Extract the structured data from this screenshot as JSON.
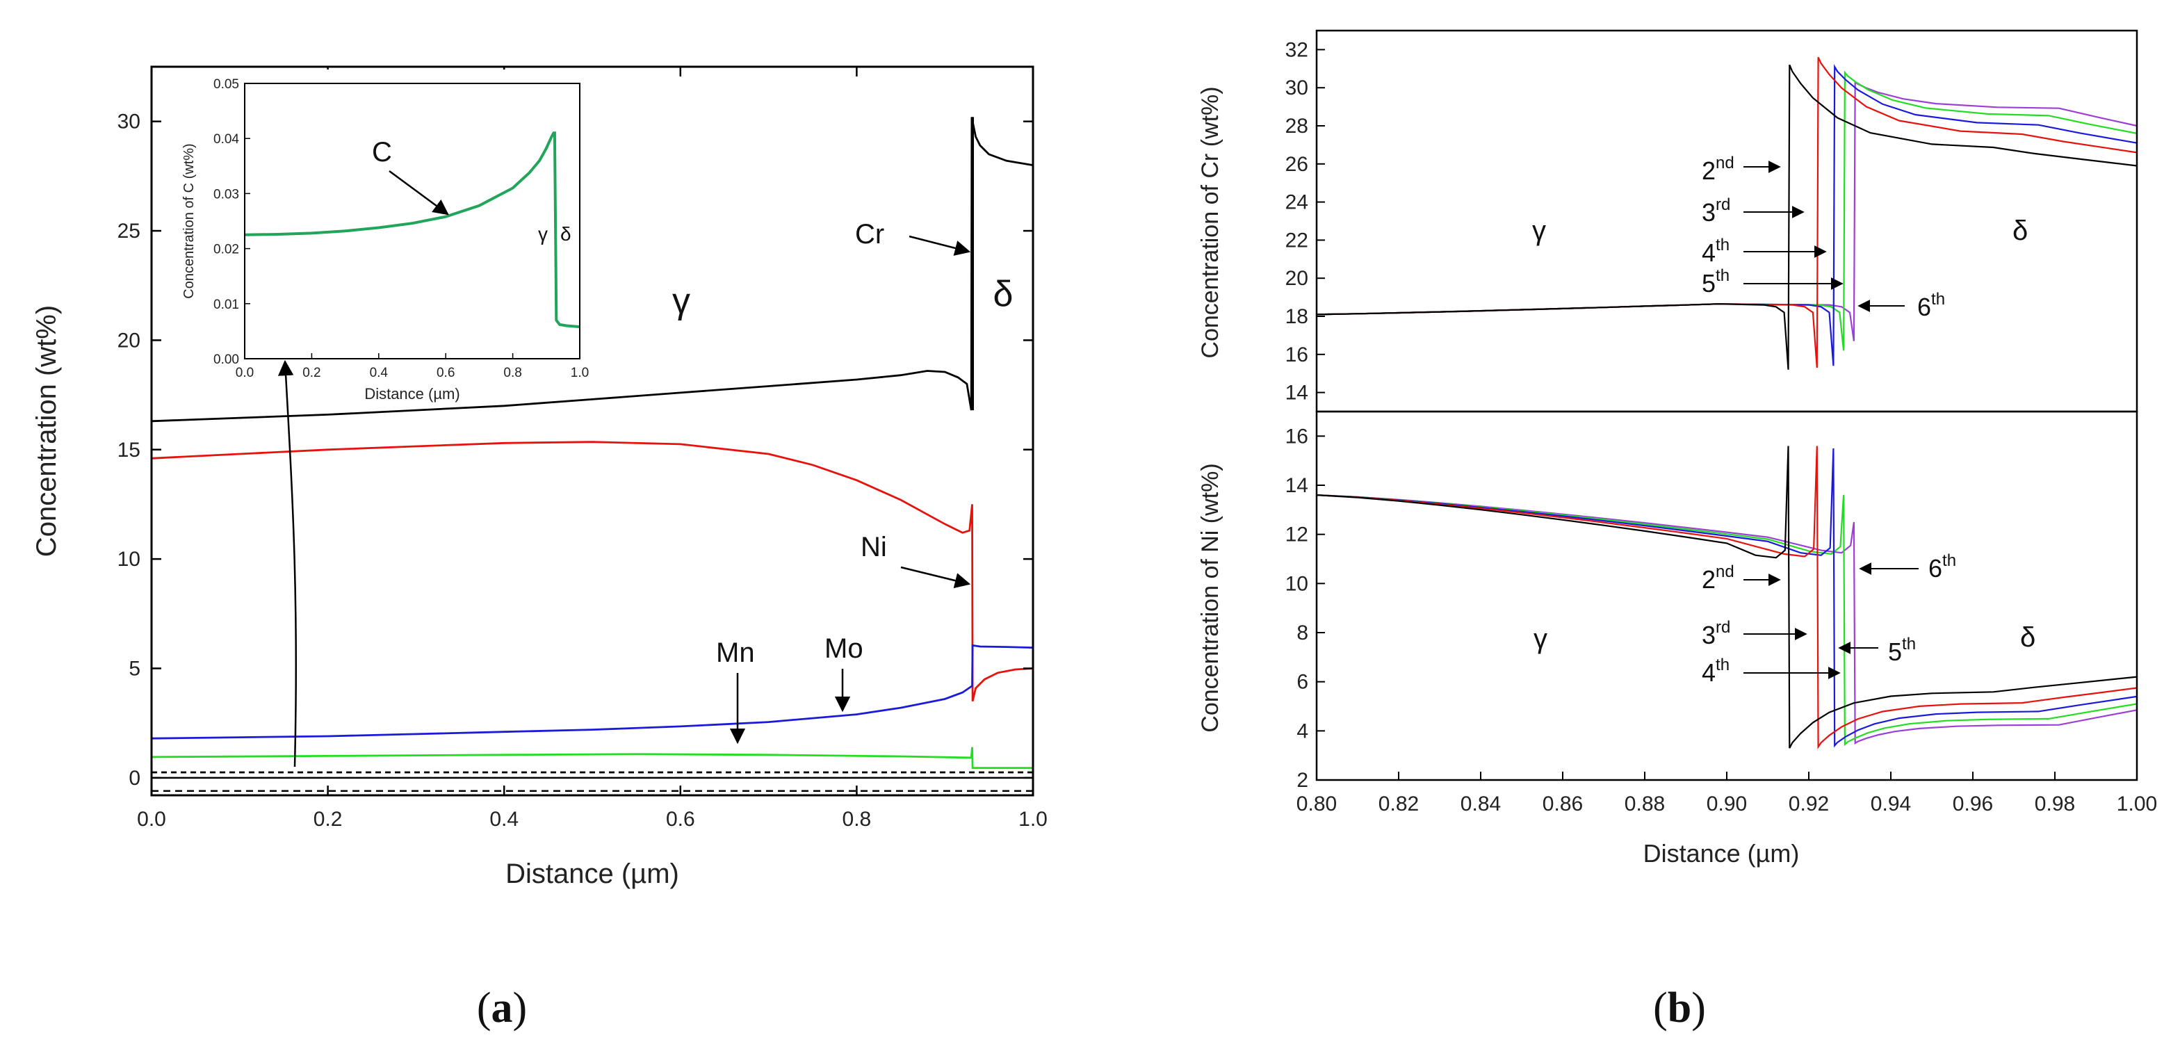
{
  "chart_data": [
    {
      "id": "a",
      "type": "line",
      "panel_label_open": "(",
      "panel_label_letter": "a",
      "panel_label_close": ")",
      "xlabel": "Distance (µm)",
      "ylabel": "Concentration (wt%)",
      "xlim": [
        0.0,
        1.0
      ],
      "ylim": [
        -0.8,
        32.5
      ],
      "xticks": [
        0.0,
        0.2,
        0.4,
        0.6,
        0.8,
        1.0
      ],
      "xtick_labels": [
        "0.0",
        "0.2",
        "0.4",
        "0.6",
        "0.8",
        "1.0"
      ],
      "yticks": [
        0,
        5,
        10,
        15,
        20,
        25,
        30
      ],
      "ytick_labels": [
        "0",
        "5",
        "10",
        "15",
        "20",
        "25",
        "30"
      ],
      "interface_x": 0.932,
      "series": [
        {
          "name": "Cr",
          "color": "#000000",
          "x": [
            0.0,
            0.1,
            0.2,
            0.3,
            0.4,
            0.5,
            0.6,
            0.7,
            0.8,
            0.85,
            0.88,
            0.9,
            0.915,
            0.925,
            0.93,
            0.9305,
            0.9315,
            0.935,
            0.94,
            0.95,
            0.97,
            1.0
          ],
          "y": [
            16.3,
            16.45,
            16.6,
            16.8,
            17.0,
            17.3,
            17.6,
            17.9,
            18.2,
            18.4,
            18.6,
            18.55,
            18.3,
            18.0,
            16.8,
            30.2,
            30.0,
            29.3,
            28.9,
            28.5,
            28.2,
            28.0
          ]
        },
        {
          "name": "Ni",
          "color": "#e8120c",
          "x": [
            0.0,
            0.1,
            0.2,
            0.3,
            0.4,
            0.5,
            0.6,
            0.7,
            0.75,
            0.8,
            0.85,
            0.9,
            0.92,
            0.928,
            0.931,
            0.9315,
            0.935,
            0.945,
            0.96,
            0.98,
            1.0
          ],
          "y": [
            14.6,
            14.8,
            15.0,
            15.15,
            15.3,
            15.35,
            15.25,
            14.8,
            14.3,
            13.6,
            12.7,
            11.6,
            11.2,
            11.3,
            12.5,
            3.5,
            4.1,
            4.5,
            4.8,
            4.95,
            5.0
          ]
        },
        {
          "name": "Mo",
          "color": "#1a1adb",
          "x": [
            0.0,
            0.1,
            0.2,
            0.3,
            0.4,
            0.5,
            0.6,
            0.7,
            0.8,
            0.85,
            0.9,
            0.92,
            0.931,
            0.9315,
            0.94,
            0.97,
            1.0
          ],
          "y": [
            1.8,
            1.85,
            1.9,
            2.0,
            2.1,
            2.2,
            2.35,
            2.55,
            2.9,
            3.2,
            3.6,
            3.9,
            4.2,
            6.05,
            6.0,
            5.98,
            5.95
          ]
        },
        {
          "name": "Mn",
          "color": "#22dd22",
          "x": [
            0.0,
            0.2,
            0.4,
            0.55,
            0.7,
            0.85,
            0.93,
            0.931,
            0.9315,
            0.935,
            0.94,
            1.0
          ],
          "y": [
            0.95,
            1.0,
            1.05,
            1.08,
            1.05,
            0.98,
            0.92,
            1.4,
            0.45,
            0.45,
            0.45,
            0.45
          ]
        },
        {
          "name": "C",
          "color": "#000000",
          "dash": "8,6",
          "x": [
            0.0,
            1.0
          ],
          "y": [
            0.25,
            0.25
          ]
        }
      ],
      "zero_line_y": 0.0,
      "bottom_dashed_y": -0.6,
      "annotations": {
        "gamma": "γ",
        "delta": "δ",
        "cr": "Cr",
        "ni": "Ni",
        "mn": "Mn",
        "mo": "Mo"
      },
      "inset": {
        "xlabel": "Distance (µm)",
        "ylabel": "Concentration of C (wt%)",
        "xlim": [
          0.0,
          1.0
        ],
        "ylim": [
          0.0,
          0.05
        ],
        "xticks": [
          0.0,
          0.2,
          0.4,
          0.6,
          0.8,
          1.0
        ],
        "xtick_labels": [
          "0.0",
          "0.2",
          "0.4",
          "0.6",
          "0.8",
          "1.0"
        ],
        "yticks": [
          0.0,
          0.01,
          0.02,
          0.03,
          0.04,
          0.05
        ],
        "ytick_labels": [
          "0.00",
          "0.01",
          "0.02",
          "0.03",
          "0.04",
          "0.05"
        ],
        "series": [
          {
            "name": "C",
            "color": "#22a55a",
            "x": [
              0.0,
              0.1,
              0.2,
              0.3,
              0.4,
              0.5,
              0.6,
              0.7,
              0.8,
              0.85,
              0.88,
              0.9,
              0.915,
              0.922,
              0.925,
              0.93,
              0.94,
              0.96,
              1.0
            ],
            "y": [
              0.0225,
              0.0226,
              0.0228,
              0.0232,
              0.0238,
              0.0246,
              0.0258,
              0.0278,
              0.031,
              0.0338,
              0.036,
              0.0382,
              0.0402,
              0.041,
              0.041,
              0.007,
              0.0062,
              0.006,
              0.0058
            ]
          }
        ],
        "annotations": {
          "c": "C",
          "gamma": "γ",
          "delta": "δ"
        }
      }
    },
    {
      "id": "b",
      "type": "line",
      "panel_label_open": "(",
      "panel_label_letter": "b",
      "panel_label_close": ")",
      "xlabel": "Distance (µm)",
      "xlim": [
        0.8,
        1.0
      ],
      "xticks": [
        0.8,
        0.82,
        0.84,
        0.86,
        0.88,
        0.9,
        0.92,
        0.94,
        0.96,
        0.98,
        1.0
      ],
      "xtick_labels": [
        "0.80",
        "0.82",
        "0.84",
        "0.86",
        "0.88",
        "0.90",
        "0.92",
        "0.94",
        "0.96",
        "0.98",
        "1.00"
      ],
      "series_names": [
        "2nd",
        "3rd",
        "4th",
        "5th",
        "6th"
      ],
      "series_colors": [
        "#000000",
        "#e8120c",
        "#1a1adb",
        "#22dd22",
        "#9b3fd6"
      ],
      "interfaces": [
        0.915,
        0.922,
        0.926,
        0.9285,
        0.931
      ],
      "top": {
        "ylabel": "Concentration of Cr (wt%)",
        "ylim": [
          13,
          33
        ],
        "yticks": [
          14,
          16,
          18,
          20,
          22,
          24,
          26,
          28,
          30,
          32
        ],
        "ytick_labels": [
          "14",
          "16",
          "18",
          "20",
          "22",
          "24",
          "26",
          "28",
          "30",
          "32"
        ],
        "gamma_start": 18.1,
        "gamma_peak": 18.65,
        "gamma_dip": [
          15.2,
          15.3,
          15.4,
          16.2,
          16.7
        ],
        "spike": [
          31.2,
          31.6,
          31.1,
          30.8,
          30.3
        ],
        "delta_end": [
          25.9,
          26.6,
          27.1,
          27.6,
          28.0
        ],
        "annotations": {
          "gamma": "γ",
          "delta": "δ",
          "nd": "2",
          "nd_sup": "nd",
          "rd": "3",
          "rd_sup": "rd",
          "th4": "4",
          "th4_sup": "th",
          "th5": "5",
          "th5_sup": "th",
          "th6": "6",
          "th6_sup": "th"
        }
      },
      "bottom": {
        "ylabel": "Concentration of Ni (wt%)",
        "ylim": [
          2,
          17
        ],
        "yticks": [
          2,
          4,
          6,
          8,
          10,
          12,
          14,
          16
        ],
        "ytick_labels": [
          "2",
          "4",
          "6",
          "8",
          "10",
          "12",
          "14",
          "16"
        ],
        "gamma_start": 13.6,
        "gamma_min": [
          11.05,
          11.1,
          11.15,
          11.2,
          11.25
        ],
        "spike": [
          15.6,
          15.6,
          15.5,
          13.6,
          12.5
        ],
        "delta_dip": [
          3.3,
          3.35,
          3.4,
          3.45,
          3.5
        ],
        "delta_end": [
          6.2,
          5.75,
          5.4,
          5.1,
          4.85
        ],
        "annotations": {
          "gamma": "γ",
          "delta": "δ",
          "nd": "2",
          "nd_sup": "nd",
          "rd": "3",
          "rd_sup": "rd",
          "th4": "4",
          "th4_sup": "th",
          "th5": "5",
          "th5_sup": "th",
          "th6": "6",
          "th6_sup": "th"
        }
      }
    }
  ]
}
